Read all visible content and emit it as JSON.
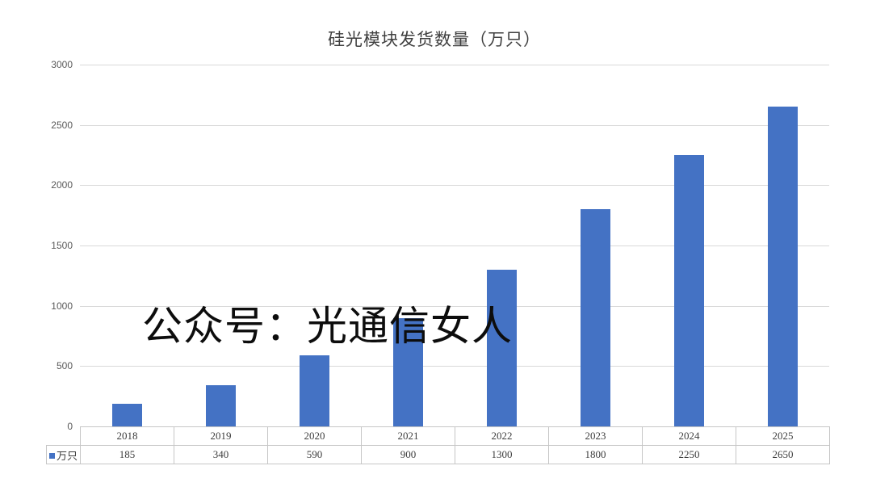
{
  "title": "硅光模块发货数量（万只）",
  "watermark": "公众号：光通信女人",
  "chart_data": {
    "type": "bar",
    "title": "硅光模块发货数量（万只）",
    "categories": [
      "2018",
      "2019",
      "2020",
      "2021",
      "2022",
      "2023",
      "2024",
      "2025"
    ],
    "series": [
      {
        "name": "万只",
        "values": [
          185,
          340,
          590,
          900,
          1300,
          1800,
          2250,
          2650
        ]
      }
    ],
    "xlabel": "",
    "ylabel": "",
    "ylim": [
      0,
      3000
    ],
    "yticks": [
      0,
      500,
      1000,
      1500,
      2000,
      2500,
      3000
    ],
    "grid": true,
    "legend_position": "bottom-left-of-data-table",
    "data_table_shown": true,
    "bar_color": "#4472c4",
    "gridline_color": "#d9d9d9"
  }
}
